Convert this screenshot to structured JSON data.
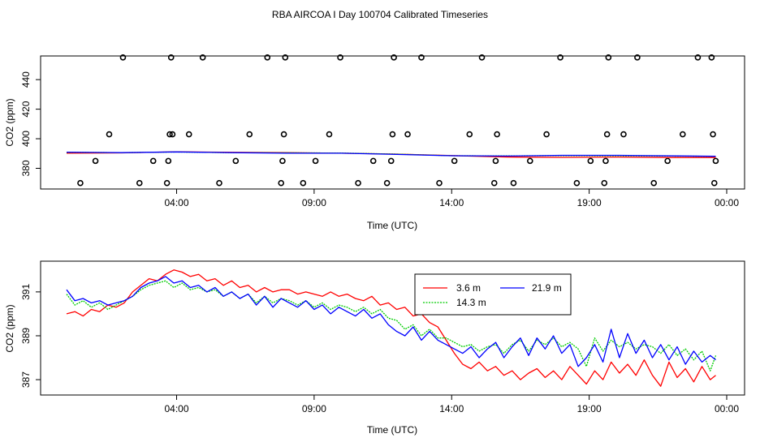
{
  "title": "RBA AIRCOA I  Day 100704  Calibrated Timeseries",
  "chart_data": [
    {
      "type": "line",
      "title": "",
      "xlabel": "Time (UTC)",
      "ylabel": "CO2 (ppm)",
      "xlim": [
        0,
        24
      ],
      "ylim": [
        366,
        456
      ],
      "x_ticks": [
        4,
        9,
        14,
        19,
        24
      ],
      "x_tick_labels": [
        "04:00",
        "09:00",
        "14:00",
        "19:00",
        "00:00"
      ],
      "y_ticks": [
        380,
        400,
        420,
        440
      ],
      "y_tick_labels": [
        "380",
        "400",
        "420",
        "440"
      ],
      "series": [
        {
          "name": "3.6 m",
          "color": "#ff0000",
          "x": [
            0,
            2,
            4,
            6,
            8,
            10,
            12,
            14,
            16,
            18,
            20,
            22,
            23.6
          ],
          "y": [
            390.2,
            390.4,
            391.2,
            390.8,
            390.6,
            390.2,
            389.6,
            388.6,
            387.6,
            387.4,
            387.6,
            387.3,
            387.3
          ]
        },
        {
          "name": "14.3 m",
          "color": "#00cc00",
          "x": [
            0,
            2,
            4,
            6,
            8,
            10,
            12,
            14,
            16,
            18,
            20,
            22,
            23.6
          ],
          "y": [
            390.8,
            390.6,
            391.0,
            390.6,
            390.5,
            390.3,
            389.6,
            388.5,
            388.4,
            388.6,
            388.5,
            388.3,
            388.1
          ]
        },
        {
          "name": "21.9 m",
          "color": "#0000ff",
          "x": [
            0,
            2,
            4,
            6,
            8,
            10,
            12,
            14,
            16,
            18,
            20,
            22,
            23.6
          ],
          "y": [
            390.9,
            390.6,
            391.1,
            390.6,
            390.2,
            390.2,
            389.4,
            388.5,
            388.3,
            388.8,
            388.8,
            388.4,
            388.1
          ]
        }
      ],
      "outliers": {
        "x": [
          0.5,
          1.05,
          1.55,
          2.05,
          2.65,
          3.15,
          3.65,
          3.7,
          3.75,
          3.8,
          3.85,
          4.45,
          4.95,
          5.55,
          6.15,
          6.65,
          7.3,
          7.8,
          7.85,
          7.9,
          7.95,
          8.6,
          9.05,
          9.55,
          9.95,
          10.6,
          11.15,
          11.65,
          11.8,
          11.85,
          11.9,
          12.4,
          12.9,
          13.55,
          14.1,
          14.65,
          15.1,
          15.55,
          15.6,
          15.65,
          16.25,
          16.85,
          17.45,
          17.95,
          18.55,
          19.05,
          19.55,
          19.6,
          19.65,
          19.7,
          20.25,
          20.75,
          21.35,
          21.85,
          22.4,
          22.95,
          23.45,
          23.5,
          23.55,
          23.6
        ],
        "y": [
          370,
          385,
          403,
          455,
          370,
          385,
          370,
          385,
          403,
          455,
          403,
          403,
          455,
          370,
          385,
          403,
          455,
          370,
          385,
          403,
          455,
          370,
          385,
          403,
          455,
          370,
          385,
          370,
          385,
          403,
          455,
          403,
          455,
          370,
          385,
          403,
          455,
          370,
          385,
          403,
          370,
          385,
          403,
          455,
          370,
          385,
          370,
          385,
          403,
          455,
          403,
          455,
          370,
          385,
          403,
          455,
          455,
          403,
          370,
          385
        ]
      }
    },
    {
      "type": "line",
      "title": "",
      "xlabel": "Time (UTC)",
      "ylabel": "CO2 (ppm)",
      "xlim": [
        0,
        24
      ],
      "ylim": [
        386.3,
        392.4
      ],
      "x_ticks": [
        4,
        9,
        14,
        19,
        24
      ],
      "x_tick_labels": [
        "04:00",
        "09:00",
        "14:00",
        "19:00",
        "00:00"
      ],
      "y_ticks": [
        387,
        389,
        391
      ],
      "y_tick_labels": [
        "387",
        "389",
        "391"
      ],
      "legend": {
        "position": "top-center",
        "entries": [
          "3.6 m",
          "21.9 m",
          "14.3 m"
        ]
      },
      "series": [
        {
          "name": "3.6 m",
          "color": "#ff0000",
          "x": [
            0,
            0.3,
            0.6,
            0.9,
            1.2,
            1.5,
            1.8,
            2.1,
            2.4,
            2.7,
            3.0,
            3.3,
            3.6,
            3.9,
            4.2,
            4.5,
            4.8,
            5.1,
            5.4,
            5.7,
            6.0,
            6.3,
            6.6,
            6.9,
            7.2,
            7.5,
            7.8,
            8.1,
            8.4,
            8.7,
            9.0,
            9.3,
            9.6,
            9.9,
            10.2,
            10.5,
            10.8,
            11.1,
            11.4,
            11.7,
            12.0,
            12.3,
            12.6,
            12.9,
            13.2,
            13.5,
            13.8,
            14.1,
            14.4,
            14.7,
            15.0,
            15.3,
            15.6,
            15.9,
            16.2,
            16.5,
            16.8,
            17.1,
            17.4,
            17.7,
            18.0,
            18.3,
            18.6,
            18.9,
            19.2,
            19.5,
            19.8,
            20.1,
            20.4,
            20.7,
            21.0,
            21.3,
            21.6,
            21.9,
            22.2,
            22.5,
            22.8,
            23.1,
            23.4,
            23.6
          ],
          "y": [
            390.0,
            390.1,
            389.9,
            390.2,
            390.1,
            390.4,
            390.3,
            390.5,
            391.0,
            391.3,
            391.6,
            391.5,
            391.8,
            392.0,
            391.9,
            391.7,
            391.8,
            391.5,
            391.6,
            391.3,
            391.5,
            391.2,
            391.3,
            391.0,
            391.2,
            391.0,
            391.1,
            391.1,
            390.9,
            391.0,
            390.9,
            390.8,
            391.0,
            390.8,
            390.9,
            390.7,
            390.6,
            390.8,
            390.4,
            390.5,
            390.2,
            390.3,
            389.9,
            390.0,
            389.6,
            389.4,
            388.8,
            388.2,
            387.7,
            387.5,
            387.8,
            387.4,
            387.6,
            387.2,
            387.4,
            387.0,
            387.3,
            387.5,
            387.1,
            387.4,
            387.0,
            387.6,
            387.2,
            386.8,
            387.4,
            387.0,
            387.8,
            387.3,
            387.7,
            387.2,
            387.9,
            387.2,
            386.7,
            387.8,
            387.1,
            387.5,
            386.9,
            387.6,
            387.0,
            387.2
          ]
        },
        {
          "name": "14.3 m",
          "color": "#00cc00",
          "x": [
            0,
            0.3,
            0.6,
            0.9,
            1.2,
            1.5,
            1.8,
            2.1,
            2.4,
            2.7,
            3.0,
            3.3,
            3.6,
            3.9,
            4.2,
            4.5,
            4.8,
            5.1,
            5.4,
            5.7,
            6.0,
            6.3,
            6.6,
            6.9,
            7.2,
            7.5,
            7.8,
            8.1,
            8.4,
            8.7,
            9.0,
            9.3,
            9.6,
            9.9,
            10.2,
            10.5,
            10.8,
            11.1,
            11.4,
            11.7,
            12.0,
            12.3,
            12.6,
            12.9,
            13.2,
            13.5,
            13.8,
            14.1,
            14.4,
            14.7,
            15.0,
            15.3,
            15.6,
            15.9,
            16.2,
            16.5,
            16.8,
            17.1,
            17.4,
            17.7,
            18.0,
            18.3,
            18.6,
            18.9,
            19.2,
            19.5,
            19.8,
            20.1,
            20.4,
            20.7,
            21.0,
            21.3,
            21.6,
            21.9,
            22.2,
            22.5,
            22.8,
            23.1,
            23.4,
            23.6
          ],
          "y": [
            390.9,
            390.4,
            390.6,
            390.3,
            390.5,
            390.2,
            390.4,
            390.6,
            390.8,
            391.1,
            391.3,
            391.4,
            391.5,
            391.2,
            391.4,
            391.1,
            391.2,
            391.0,
            391.1,
            390.8,
            391.0,
            390.7,
            390.9,
            390.5,
            390.8,
            390.5,
            390.7,
            390.6,
            390.4,
            390.6,
            390.3,
            390.5,
            390.2,
            390.4,
            390.3,
            390.1,
            390.3,
            390.0,
            390.2,
            389.8,
            389.7,
            389.3,
            389.5,
            389.0,
            389.3,
            388.9,
            388.9,
            388.7,
            388.5,
            388.6,
            388.3,
            388.5,
            388.6,
            388.2,
            388.6,
            388.8,
            388.3,
            388.8,
            388.6,
            388.9,
            388.5,
            388.7,
            388.4,
            387.6,
            388.9,
            388.3,
            388.8,
            388.5,
            388.7,
            388.4,
            388.6,
            388.5,
            388.2,
            388.6,
            388.1,
            388.4,
            387.9,
            388.3,
            387.4,
            388.1
          ]
        },
        {
          "name": "21.9 m",
          "color": "#0000ff",
          "x": [
            0,
            0.3,
            0.6,
            0.9,
            1.2,
            1.5,
            1.8,
            2.1,
            2.4,
            2.7,
            3.0,
            3.3,
            3.6,
            3.9,
            4.2,
            4.5,
            4.8,
            5.1,
            5.4,
            5.7,
            6.0,
            6.3,
            6.6,
            6.9,
            7.2,
            7.5,
            7.8,
            8.1,
            8.4,
            8.7,
            9.0,
            9.3,
            9.6,
            9.9,
            10.2,
            10.5,
            10.8,
            11.1,
            11.4,
            11.7,
            12.0,
            12.3,
            12.6,
            12.9,
            13.2,
            13.5,
            13.8,
            14.1,
            14.4,
            14.7,
            15.0,
            15.3,
            15.6,
            15.9,
            16.2,
            16.5,
            16.8,
            17.1,
            17.4,
            17.7,
            18.0,
            18.3,
            18.6,
            18.9,
            19.2,
            19.5,
            19.8,
            20.1,
            20.4,
            20.7,
            21.0,
            21.3,
            21.6,
            21.9,
            22.2,
            22.5,
            22.8,
            23.1,
            23.4,
            23.6
          ],
          "y": [
            391.1,
            390.6,
            390.7,
            390.5,
            390.6,
            390.4,
            390.5,
            390.6,
            390.8,
            391.2,
            391.4,
            391.5,
            391.7,
            391.4,
            391.5,
            391.2,
            391.3,
            391.0,
            391.2,
            390.8,
            391.0,
            390.7,
            390.9,
            390.4,
            390.8,
            390.3,
            390.7,
            390.5,
            390.3,
            390.6,
            390.2,
            390.4,
            390.0,
            390.3,
            390.1,
            389.9,
            390.2,
            389.8,
            390.0,
            389.5,
            389.2,
            389.0,
            389.4,
            388.8,
            389.2,
            388.8,
            388.6,
            388.4,
            388.2,
            388.5,
            388.0,
            388.4,
            388.7,
            388.0,
            388.5,
            388.9,
            388.1,
            388.9,
            388.4,
            389.0,
            388.2,
            388.6,
            387.6,
            388.0,
            388.6,
            387.8,
            389.3,
            388.0,
            389.1,
            388.2,
            388.8,
            388.0,
            388.6,
            387.9,
            388.5,
            387.7,
            388.3,
            387.8,
            388.1,
            387.9
          ]
        }
      ]
    }
  ]
}
